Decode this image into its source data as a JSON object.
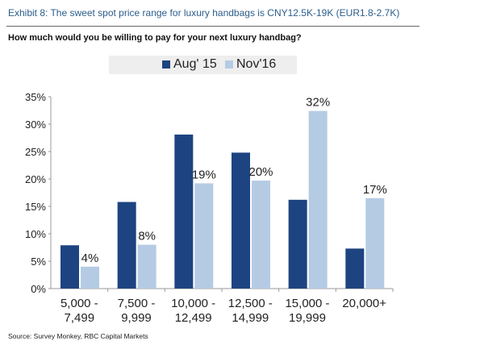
{
  "title": "Exhibit 8: The sweet spot price range for luxury handbags is CNY12.5K-19K (EUR1.8-2.7K)",
  "subtitle": "How much would you be willing to pay for your next luxury handbag?",
  "source": "Source: Survey Monkey, RBC Capital Markets",
  "colors": {
    "aug": "#1d4480",
    "nov": "#b5cbe4"
  },
  "chart_data": {
    "type": "bar",
    "categories": [
      [
        "5,000 -",
        "7,499"
      ],
      [
        "7,500 -",
        "9,999"
      ],
      [
        "10,000 -",
        "12,499"
      ],
      [
        "12,500 -",
        "14,999"
      ],
      [
        "15,000 -",
        "19,999"
      ],
      [
        "20,000+",
        ""
      ]
    ],
    "series": [
      {
        "name": "Aug' 15",
        "values": [
          7.9,
          15.8,
          28.1,
          24.8,
          16.2,
          7.3
        ],
        "labels": [
          "",
          "",
          "",
          "",
          "",
          ""
        ]
      },
      {
        "name": "Nov'16",
        "values": [
          4.0,
          8.0,
          19.2,
          19.7,
          32.4,
          16.5
        ],
        "labels": [
          "4%",
          "8%",
          "19%",
          "20%",
          "32%",
          "17%"
        ]
      }
    ],
    "yticks": [
      "0%",
      "5%",
      "10%",
      "15%",
      "20%",
      "25%",
      "30%",
      "35%"
    ],
    "ylim": [
      0,
      35
    ],
    "legend": "top-center",
    "grid": false
  }
}
